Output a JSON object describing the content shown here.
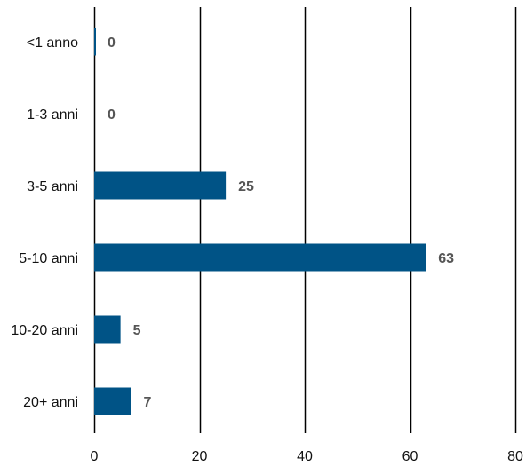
{
  "chart_data": {
    "type": "bar",
    "orientation": "horizontal",
    "categories": [
      "<1 anno",
      "1-3 anni",
      "3-5 anni",
      "5-10 anni",
      "10-20 anni",
      "20+ anni"
    ],
    "values": [
      0,
      0,
      25,
      63,
      5,
      7
    ],
    "value_labels": [
      "0",
      "0",
      "25",
      "63",
      "5",
      "7"
    ],
    "xlim": [
      0,
      80
    ],
    "x_ticks": [
      0,
      20,
      40,
      60,
      80
    ],
    "x_tick_labels": [
      "0",
      "20",
      "40",
      "60",
      "80"
    ],
    "grid": "vertical",
    "bar_color": "#005386",
    "gridline_color": "#000000",
    "value_label_color": "#555555"
  }
}
